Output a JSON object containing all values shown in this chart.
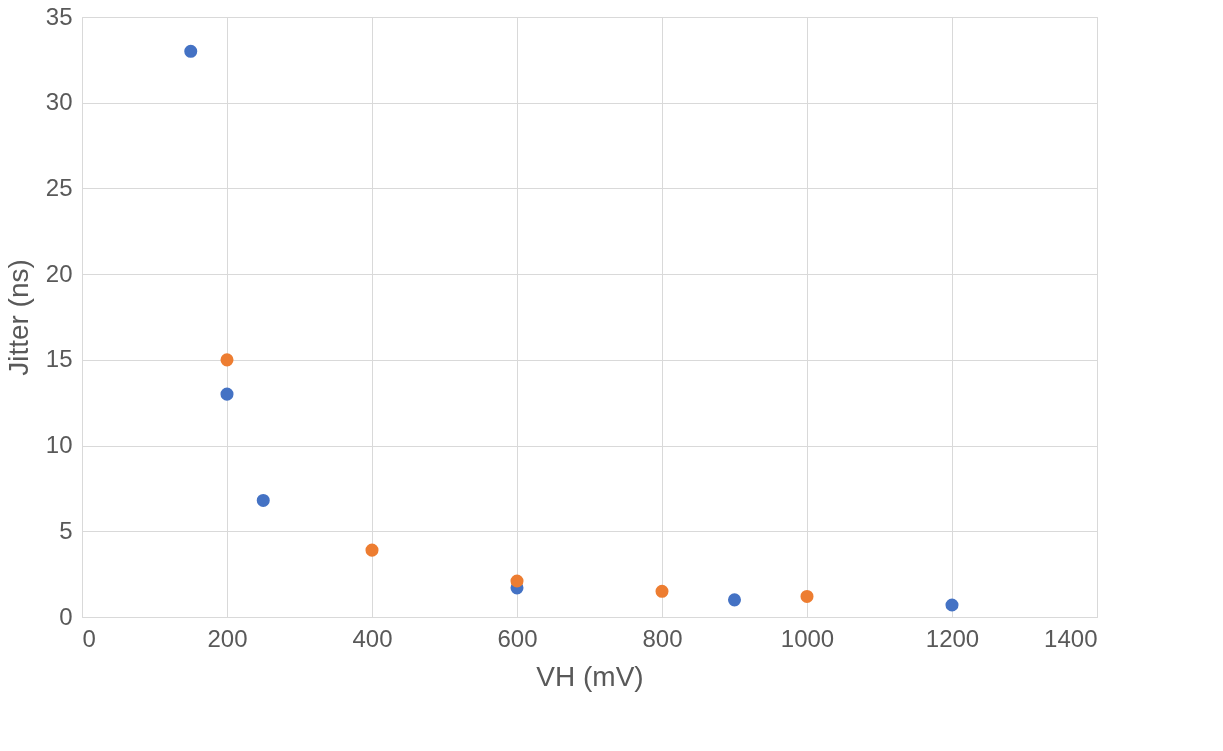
{
  "chart_data": {
    "type": "scatter",
    "xlabel": "VH (mV)",
    "ylabel": "Jitter (ns)",
    "series": [
      {
        "color": "#4472c4",
        "x": [
          150,
          200,
          250,
          600,
          900,
          1200
        ],
        "values": [
          33,
          13,
          6.8,
          1.7,
          1.0,
          0.7
        ]
      },
      {
        "color": "#ed7d31",
        "x": [
          200,
          400,
          600,
          800,
          1000
        ],
        "values": [
          15,
          3.9,
          2.1,
          1.5,
          1.2
        ]
      }
    ],
    "xlim": [
      0,
      1400
    ],
    "xticks": [
      0,
      200,
      400,
      600,
      800,
      1000,
      1200,
      1400
    ],
    "ylim": [
      0,
      35
    ],
    "yticks": [
      0,
      5,
      10,
      15,
      20,
      25,
      30,
      35
    ],
    "grid": true,
    "marker": "circle",
    "legend": false
  }
}
